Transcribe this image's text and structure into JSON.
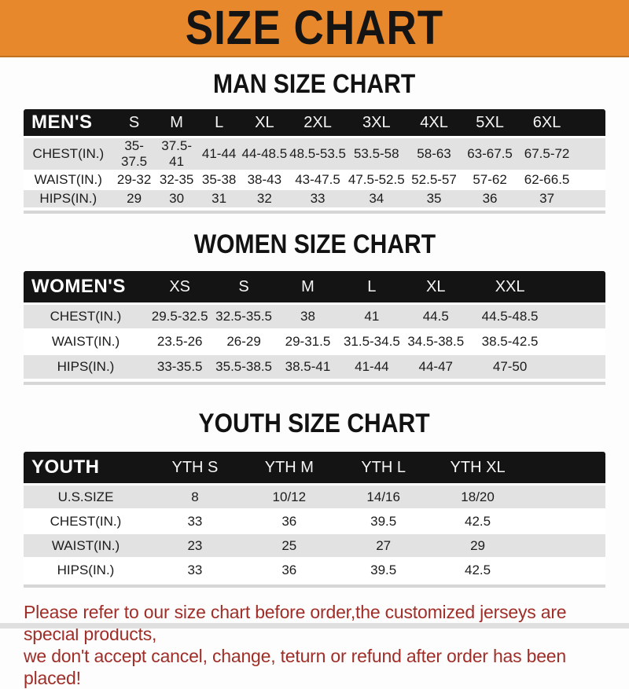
{
  "banner": {
    "title": "SIZE CHART"
  },
  "colors": {
    "banner_bg": "#E8882C",
    "table_bar_bg": "#141414",
    "row_gray": "#E2E2E2",
    "footer_red": "#A02E28"
  },
  "sections": [
    {
      "title": "MAN SIZE CHART",
      "header_label": "MEN'S",
      "columns": [
        "S",
        "M",
        "L",
        "XL",
        "2XL",
        "3XL",
        "4XL",
        "5XL",
        "6XL"
      ],
      "rows": [
        {
          "label": "CHEST(IN.)",
          "values": [
            "35-37.5",
            "37.5-41",
            "41-44",
            "44-48.5",
            "48.5-53.5",
            "53.5-58",
            "58-63",
            "63-67.5",
            "67.5-72"
          ]
        },
        {
          "label": "WAIST(IN.)",
          "values": [
            "29-32",
            "32-35",
            "35-38",
            "38-43",
            "43-47.5",
            "47.5-52.5",
            "52.5-57",
            "57-62",
            "62-66.5"
          ]
        },
        {
          "label": "HIPS(IN.)",
          "values": [
            "29",
            "30",
            "31",
            "32",
            "33",
            "34",
            "35",
            "36",
            "37"
          ]
        }
      ]
    },
    {
      "title": "WOMEN SIZE CHART",
      "header_label": "WOMEN'S",
      "columns": [
        "XS",
        "S",
        "M",
        "L",
        "XL",
        "XXL"
      ],
      "rows": [
        {
          "label": "CHEST(IN.)",
          "values": [
            "29.5-32.5",
            "32.5-35.5",
            "38",
            "41",
            "44.5",
            "44.5-48.5"
          ]
        },
        {
          "label": "WAIST(IN.)",
          "values": [
            "23.5-26",
            "26-29",
            "29-31.5",
            "31.5-34.5",
            "34.5-38.5",
            "38.5-42.5"
          ]
        },
        {
          "label": "HIPS(IN.)",
          "values": [
            "33-35.5",
            "35.5-38.5",
            "38.5-41",
            "41-44",
            "44-47",
            "47-50"
          ]
        }
      ]
    },
    {
      "title": "YOUTH SIZE CHART",
      "header_label": "YOUTH",
      "columns": [
        "YTH S",
        "YTH M",
        "YTH L",
        "YTH XL"
      ],
      "rows": [
        {
          "label": "U.S.SIZE",
          "values": [
            "8",
            "10/12",
            "14/16",
            "18/20"
          ]
        },
        {
          "label": "CHEST(IN.)",
          "values": [
            "33",
            "36",
            "39.5",
            "42.5"
          ]
        },
        {
          "label": "WAIST(IN.)",
          "values": [
            "23",
            "25",
            "27",
            "29"
          ]
        },
        {
          "label": "HIPS(IN.)",
          "values": [
            "33",
            "36",
            "39.5",
            "42.5"
          ]
        }
      ]
    }
  ],
  "footer": {
    "line1": "Please refer to our size chart before order,the customized jerseys are special products,",
    "line2": "we don't accept cancel, change, teturn or refund after order has been placed!"
  }
}
